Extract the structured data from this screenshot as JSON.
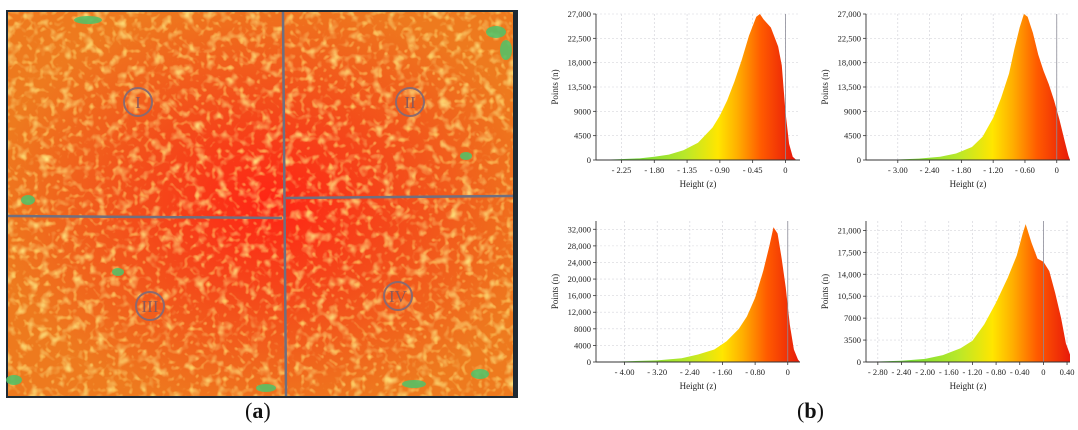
{
  "panels": {
    "a": {
      "label_open": "(",
      "label_letter": "a",
      "label_close": ")"
    },
    "b": {
      "label_open": "(",
      "label_letter": "b",
      "label_close": ")"
    }
  },
  "map": {
    "quadrants": [
      "I",
      "II",
      "III",
      "IV"
    ],
    "colors": {
      "base": "#e8641e",
      "hot": "#ff2a1a",
      "mid": "#f6a11c",
      "cool": "#d7e23a",
      "edge": "#41c06a",
      "frame": "#1f2a33"
    }
  },
  "chart_data": [
    {
      "type": "area",
      "xlabel": "Height (z)",
      "ylabel": "Points (n)",
      "x_ticks": [
        "- 2.25",
        "- 1.80",
        "- 1.35",
        "- 0.90",
        "- 0.45",
        "0"
      ],
      "x_tick_values": [
        -2.25,
        -1.8,
        -1.35,
        -0.9,
        -0.45,
        0
      ],
      "y_ticks": [
        "0",
        "4500",
        "9000",
        "13,500",
        "18,000",
        "22,500",
        "27,000"
      ],
      "y_tick_values": [
        0,
        4500,
        9000,
        13500,
        18000,
        22500,
        27000
      ],
      "xlim": [
        -2.6,
        0.2
      ],
      "ylim": [
        0,
        27000
      ],
      "grid": true,
      "x": [
        -2.6,
        -2.3,
        -2.0,
        -1.8,
        -1.6,
        -1.4,
        -1.2,
        -1.0,
        -0.9,
        -0.8,
        -0.7,
        -0.6,
        -0.5,
        -0.4,
        -0.35,
        -0.3,
        -0.2,
        -0.1,
        -0.05,
        0,
        0.05,
        0.1,
        0.15
      ],
      "y": [
        0,
        150,
        300,
        600,
        1000,
        1800,
        3200,
        6000,
        8200,
        11000,
        14500,
        18500,
        23000,
        26500,
        27000,
        26000,
        24500,
        21000,
        17500,
        9000,
        3000,
        600,
        0
      ],
      "colors": [
        "#3fd43f",
        "#b8e82a",
        "#ffe600",
        "#ffae00",
        "#ff5a00",
        "#e81a0a"
      ]
    },
    {
      "type": "area",
      "xlabel": "Height (z)",
      "ylabel": "Points (n)",
      "x_ticks": [
        "- 3.00",
        "- 2.40",
        "- 1.80",
        "- 1.20",
        "- 0.60",
        "0"
      ],
      "x_tick_values": [
        -3.0,
        -2.4,
        -1.8,
        -1.2,
        -0.6,
        0
      ],
      "y_ticks": [
        "0",
        "4500",
        "9000",
        "13,500",
        "18,000",
        "22,500",
        "27,000"
      ],
      "y_tick_values": [
        0,
        4500,
        9000,
        13500,
        18000,
        22500,
        27000
      ],
      "xlim": [
        -3.6,
        0.25
      ],
      "ylim": [
        0,
        27000
      ],
      "grid": true,
      "x": [
        -3.6,
        -3.0,
        -2.6,
        -2.2,
        -1.9,
        -1.6,
        -1.4,
        -1.2,
        -1.05,
        -0.9,
        -0.8,
        -0.7,
        -0.62,
        -0.55,
        -0.45,
        -0.35,
        -0.25,
        -0.15,
        -0.05,
        0.05,
        0.15,
        0.22,
        0.25
      ],
      "y": [
        0,
        100,
        250,
        600,
        1200,
        2400,
        4300,
        7800,
        11500,
        16000,
        20500,
        24500,
        27000,
        26500,
        23500,
        19500,
        16500,
        14000,
        11000,
        7500,
        3500,
        800,
        0
      ],
      "colors": [
        "#3fd43f",
        "#b8e82a",
        "#ffe600",
        "#ffae00",
        "#ff5a00",
        "#e81a0a"
      ]
    },
    {
      "type": "area",
      "xlabel": "Height (z)",
      "ylabel": "Points (n)",
      "x_ticks": [
        "- 4.00",
        "- 3.20",
        "- 2.40",
        "- 1.60",
        "- 0.80",
        "0"
      ],
      "x_tick_values": [
        -4.0,
        -3.2,
        -2.4,
        -1.6,
        -0.8,
        0
      ],
      "y_ticks": [
        "0",
        "4000",
        "8000",
        "12,000",
        "16,000",
        "20,000",
        "24,000",
        "28,000",
        "32,000"
      ],
      "y_tick_values": [
        0,
        4000,
        8000,
        12000,
        16000,
        20000,
        24000,
        28000,
        32000
      ],
      "xlim": [
        -4.7,
        0.3
      ],
      "ylim": [
        0,
        34000
      ],
      "grid": true,
      "x": [
        -4.7,
        -4.0,
        -3.2,
        -2.6,
        -2.2,
        -1.8,
        -1.5,
        -1.2,
        -1.0,
        -0.8,
        -0.6,
        -0.45,
        -0.35,
        -0.25,
        -0.15,
        -0.05,
        0.05,
        0.15,
        0.25,
        0.3
      ],
      "y": [
        0,
        150,
        400,
        900,
        1800,
        3000,
        5000,
        8000,
        11000,
        15500,
        22000,
        28000,
        32500,
        31000,
        25000,
        18000,
        9000,
        3000,
        600,
        0
      ],
      "colors": [
        "#3fd43f",
        "#b8e82a",
        "#ffe600",
        "#ffae00",
        "#ff5a00",
        "#e81a0a"
      ]
    },
    {
      "type": "area",
      "xlabel": "Height (z)",
      "ylabel": "Points (n)",
      "x_ticks": [
        "- 2.80",
        "- 2.40",
        "- 2.00",
        "- 1.60",
        "- 1.20",
        "- 0.80",
        "- 0.40",
        "0",
        "0.40"
      ],
      "x_tick_values": [
        -2.8,
        -2.4,
        -2.0,
        -1.6,
        -1.2,
        -0.8,
        -0.4,
        0,
        0.4
      ],
      "y_ticks": [
        "0",
        "3500",
        "7000",
        "10,500",
        "14,000",
        "17,500",
        "21,000"
      ],
      "y_tick_values": [
        0,
        3500,
        7000,
        10500,
        14000,
        17500,
        21000
      ],
      "xlim": [
        -3.0,
        0.45
      ],
      "ylim": [
        0,
        22500
      ],
      "grid": true,
      "x": [
        -3.0,
        -2.8,
        -2.4,
        -2.0,
        -1.7,
        -1.4,
        -1.2,
        -1.0,
        -0.8,
        -0.6,
        -0.45,
        -0.35,
        -0.3,
        -0.2,
        -0.1,
        0,
        0.1,
        0.2,
        0.3,
        0.38,
        0.45
      ],
      "y": [
        0,
        80,
        200,
        500,
        1100,
        2200,
        3400,
        6000,
        9500,
        13500,
        17000,
        20500,
        22000,
        19000,
        16500,
        16000,
        14500,
        11000,
        7000,
        3000,
        1200
      ],
      "colors": [
        "#3fd43f",
        "#b8e82a",
        "#ffe600",
        "#ffae00",
        "#ff5a00",
        "#e81a0a"
      ]
    }
  ]
}
